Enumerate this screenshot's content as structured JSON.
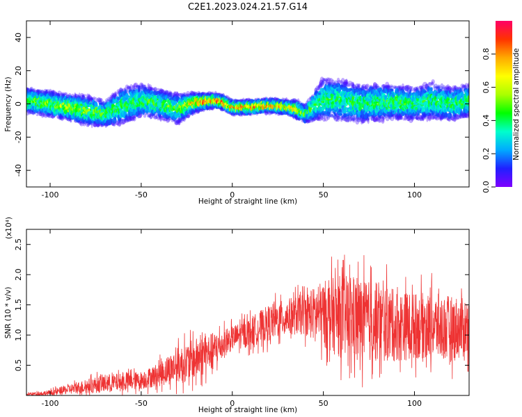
{
  "title": "C2E1.2023.024.21.57.G14",
  "colors": {
    "snr_line": "#ee3333"
  },
  "chart_data": [
    {
      "type": "heatmap",
      "name": "spectrogram",
      "xlabel": "Height of straight line (km)",
      "ylabel": "Frequency (Hz)",
      "xlim": [
        -113,
        130
      ],
      "ylim": [
        -50,
        50
      ],
      "xticks": [
        -100,
        -50,
        0,
        50,
        100
      ],
      "yticks": [
        -40,
        -20,
        0,
        20,
        40
      ],
      "colorbar": {
        "label": "Normalized spectral amplitude",
        "range": [
          0.0,
          1.0
        ],
        "ticks": [
          0.0,
          0.2,
          0.4,
          0.6,
          0.8
        ],
        "colormap": [
          "#7f00ff",
          "#2020ff",
          "#00aaff",
          "#00ffcc",
          "#00ff00",
          "#aaff00",
          "#ffff00",
          "#ffaa00",
          "#ff3300",
          "#ff0066"
        ]
      },
      "ridge": {
        "x": [
          -113,
          -100,
          -90,
          -80,
          -70,
          -60,
          -50,
          -40,
          -30,
          -20,
          -10,
          -5,
          0,
          10,
          20,
          30,
          35,
          40,
          50,
          60,
          70,
          80,
          90,
          100,
          110,
          120,
          130
        ],
        "freq": [
          2,
          0,
          -2,
          -4,
          -6,
          -1,
          2,
          0,
          -3,
          1,
          2,
          1,
          -2,
          -2,
          -1,
          -2,
          -3,
          -6,
          3,
          2,
          0,
          1,
          1,
          0,
          2,
          0,
          2
        ],
        "spread": [
          6,
          6,
          6,
          7,
          6,
          9,
          8,
          7,
          7,
          4,
          3,
          3,
          3,
          3,
          3,
          3,
          4,
          4,
          10,
          10,
          9,
          9,
          8,
          8,
          9,
          8,
          8
        ],
        "peak_amplitude": [
          0.5,
          0.55,
          0.6,
          0.55,
          0.5,
          0.45,
          0.45,
          0.5,
          0.5,
          0.85,
          0.95,
          0.95,
          0.85,
          0.85,
          0.8,
          0.75,
          0.7,
          0.5,
          0.45,
          0.45,
          0.45,
          0.45,
          0.5,
          0.45,
          0.45,
          0.45,
          0.45
        ]
      }
    },
    {
      "type": "line",
      "name": "snr",
      "xlabel": "Height of straight line (km)",
      "ylabel": "SNR (10 * v/v)",
      "y_multiplier": "(x10⁴)",
      "xlim": [
        -113,
        130
      ],
      "ylim": [
        0,
        2.75
      ],
      "xticks": [
        -100,
        -50,
        0,
        50,
        100
      ],
      "yticks": [
        0.5,
        1.0,
        1.5,
        2.0,
        2.5
      ],
      "ytick_labels": [
        "0.5",
        "1.0",
        "1.5",
        "2.0",
        "2.5"
      ],
      "envelope": {
        "x": [
          -113,
          -100,
          -90,
          -80,
          -70,
          -60,
          -50,
          -40,
          -30,
          -20,
          -10,
          0,
          10,
          20,
          30,
          40,
          50,
          60,
          70,
          80,
          90,
          100,
          110,
          120,
          130
        ],
        "mean": [
          0.02,
          0.04,
          0.1,
          0.15,
          0.2,
          0.22,
          0.25,
          0.35,
          0.5,
          0.6,
          0.75,
          0.95,
          1.05,
          1.2,
          1.3,
          1.35,
          1.35,
          1.3,
          1.25,
          1.2,
          1.15,
          1.15,
          1.15,
          1.1,
          1.15
        ],
        "amplitude": [
          0.02,
          0.05,
          0.08,
          0.12,
          0.15,
          0.15,
          0.15,
          0.2,
          0.3,
          0.35,
          0.3,
          0.2,
          0.25,
          0.3,
          0.3,
          0.35,
          0.55,
          0.7,
          0.7,
          0.65,
          0.6,
          0.55,
          0.55,
          0.55,
          0.5
        ]
      }
    }
  ]
}
